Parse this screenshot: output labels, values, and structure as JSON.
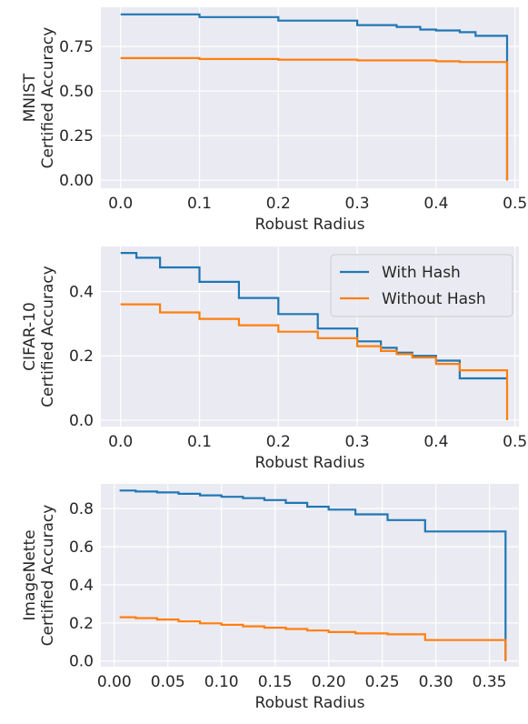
{
  "colors": {
    "with_hash": "#1f77b4",
    "without_hash": "#ff7f0e",
    "panel_bg": "#eaeaf2",
    "grid": "#ffffff",
    "text": "#262626"
  },
  "chart_data": [
    {
      "type": "line",
      "step": true,
      "xlabel": "Robust Radius",
      "ylabel_lines": [
        "MNIST",
        "Certified Accuracy"
      ],
      "xlim": [
        -0.025,
        0.505
      ],
      "ylim": [
        -0.045,
        0.97
      ],
      "xticks": [
        0.0,
        0.1,
        0.2,
        0.3,
        0.4,
        0.5
      ],
      "xtick_labels": [
        "0.0",
        "0.1",
        "0.2",
        "0.3",
        "0.4",
        "0.5"
      ],
      "yticks": [
        0.0,
        0.25,
        0.5,
        0.75
      ],
      "ytick_labels": [
        "0.00",
        "0.25",
        "0.50",
        "0.75"
      ],
      "legend": null,
      "series": [
        {
          "x": [
            0.0,
            0.1,
            0.2,
            0.3,
            0.35,
            0.38,
            0.4,
            0.43,
            0.45,
            0.49,
            0.49
          ],
          "y": [
            0.93,
            0.915,
            0.895,
            0.87,
            0.86,
            0.845,
            0.84,
            0.83,
            0.81,
            0.81,
            0.0
          ]
        },
        {
          "x": [
            0.0,
            0.1,
            0.2,
            0.3,
            0.4,
            0.43,
            0.49,
            0.49
          ],
          "y": [
            0.685,
            0.68,
            0.676,
            0.672,
            0.667,
            0.663,
            0.663,
            0.0
          ]
        }
      ]
    },
    {
      "type": "line",
      "step": true,
      "xlabel": "Robust Radius",
      "ylabel_lines": [
        "CIFAR-10",
        "Certified Accuracy"
      ],
      "xlim": [
        -0.025,
        0.505
      ],
      "ylim": [
        -0.02,
        0.54
      ],
      "xticks": [
        0.0,
        0.1,
        0.2,
        0.3,
        0.4,
        0.5
      ],
      "xtick_labels": [
        "0.0",
        "0.1",
        "0.2",
        "0.3",
        "0.4",
        "0.5"
      ],
      "yticks": [
        0.0,
        0.2,
        0.4
      ],
      "ytick_labels": [
        "0.0",
        "0.2",
        "0.4"
      ],
      "legend": {
        "position": "upper right",
        "entries": [
          "With Hash",
          "Without Hash"
        ]
      },
      "series": [
        {
          "name": "With Hash",
          "x": [
            0.0,
            0.02,
            0.05,
            0.1,
            0.15,
            0.2,
            0.25,
            0.3,
            0.33,
            0.35,
            0.37,
            0.4,
            0.43,
            0.49,
            0.49
          ],
          "y": [
            0.52,
            0.505,
            0.475,
            0.43,
            0.38,
            0.33,
            0.285,
            0.245,
            0.225,
            0.21,
            0.2,
            0.185,
            0.13,
            0.13,
            0.13
          ]
        },
        {
          "name": "Without Hash",
          "x": [
            0.0,
            0.05,
            0.1,
            0.15,
            0.2,
            0.25,
            0.3,
            0.33,
            0.35,
            0.37,
            0.4,
            0.43,
            0.49,
            0.49
          ],
          "y": [
            0.36,
            0.335,
            0.315,
            0.295,
            0.275,
            0.255,
            0.23,
            0.215,
            0.205,
            0.195,
            0.175,
            0.155,
            0.155,
            0.0
          ]
        }
      ]
    },
    {
      "type": "line",
      "step": true,
      "xlabel": "Robust Radius",
      "ylabel_lines": [
        "ImageNette",
        "Certified Accuracy"
      ],
      "xlim": [
        -0.0125,
        0.3775
      ],
      "ylim": [
        -0.03,
        0.93
      ],
      "xticks": [
        0.0,
        0.05,
        0.1,
        0.15,
        0.2,
        0.25,
        0.3,
        0.35
      ],
      "xtick_labels": [
        "0.00",
        "0.05",
        "0.10",
        "0.15",
        "0.20",
        "0.25",
        "0.30",
        "0.35"
      ],
      "yticks": [
        0.0,
        0.2,
        0.4,
        0.6,
        0.8
      ],
      "ytick_labels": [
        "0.0",
        "0.2",
        "0.4",
        "0.6",
        "0.8"
      ],
      "legend": null,
      "series": [
        {
          "x": [
            0.005,
            0.02,
            0.04,
            0.06,
            0.08,
            0.1,
            0.12,
            0.14,
            0.16,
            0.18,
            0.2,
            0.225,
            0.255,
            0.29,
            0.365,
            0.365
          ],
          "y": [
            0.895,
            0.89,
            0.885,
            0.878,
            0.87,
            0.862,
            0.855,
            0.845,
            0.83,
            0.81,
            0.795,
            0.77,
            0.74,
            0.68,
            0.68,
            0.0
          ]
        },
        {
          "x": [
            0.005,
            0.02,
            0.04,
            0.06,
            0.08,
            0.1,
            0.12,
            0.14,
            0.16,
            0.18,
            0.2,
            0.225,
            0.255,
            0.29,
            0.365,
            0.365
          ],
          "y": [
            0.23,
            0.225,
            0.218,
            0.208,
            0.198,
            0.19,
            0.182,
            0.175,
            0.168,
            0.16,
            0.152,
            0.145,
            0.14,
            0.11,
            0.11,
            0.0
          ]
        }
      ]
    }
  ]
}
